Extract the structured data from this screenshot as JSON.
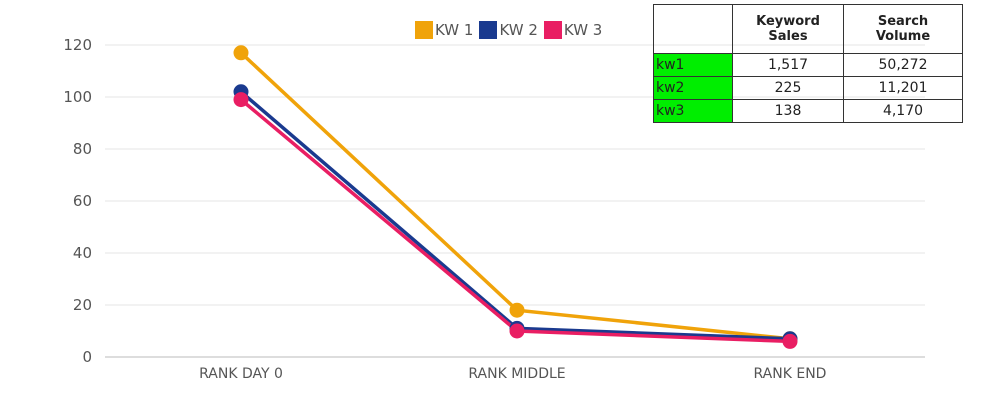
{
  "chart_data": {
    "type": "line",
    "title": "",
    "xlabel": "",
    "ylabel": "",
    "categories": [
      "RANK DAY 0",
      "RANK MIDDLE",
      "RANK END"
    ],
    "series": [
      {
        "name": "KW 1",
        "color": "#F0A30A",
        "values": [
          117,
          18,
          7
        ]
      },
      {
        "name": "KW 2",
        "color": "#1A3A8F",
        "values": [
          102,
          11,
          7
        ]
      },
      {
        "name": "KW 3",
        "color": "#E91E63",
        "values": [
          99,
          10,
          6
        ]
      }
    ],
    "yticks": [
      0,
      20,
      40,
      60,
      80,
      100,
      120
    ],
    "ylim": [
      0,
      120
    ],
    "grid": true,
    "legend_position": "top"
  },
  "legend": [
    {
      "label": "KW 1",
      "color": "#F0A30A"
    },
    {
      "label": "KW 2",
      "color": "#1A3A8F"
    },
    {
      "label": "KW 3",
      "color": "#E91E63"
    }
  ],
  "table": {
    "headers": [
      "",
      "Keyword Sales",
      "Search Volume"
    ],
    "rows": [
      {
        "keyword": "kw1",
        "sales": "1,517",
        "volume": "50,272"
      },
      {
        "keyword": "kw2",
        "sales": "225",
        "volume": "11,201"
      },
      {
        "keyword": "kw3",
        "sales": "138",
        "volume": "4,170"
      }
    ],
    "label_bg": "#00EE00"
  }
}
